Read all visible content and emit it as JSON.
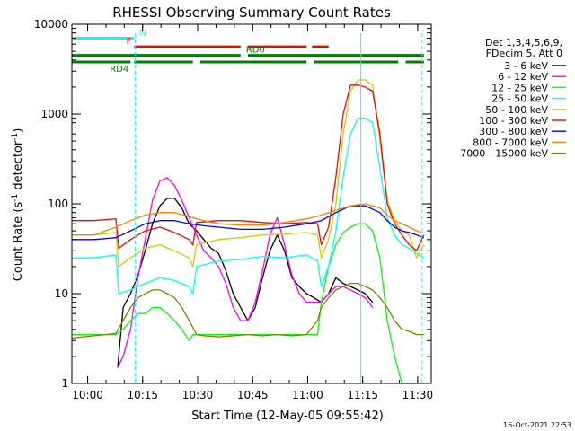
{
  "chart_data": {
    "type": "line",
    "title": "RHESSI Observing Summary Count Rates",
    "xlabel": "Start Time (12-May-05 09:55:42)",
    "ylabel_main": "Count Rate (s",
    "ylabel_sup1": "-1",
    "ylabel_mid": " detector",
    "ylabel_sup2": "-1",
    "ylabel_end": ")",
    "y_scale": "log",
    "ylim": [
      1,
      10000
    ],
    "y_ticks": [
      {
        "value": 1,
        "label": "1"
      },
      {
        "value": 10,
        "label": "10"
      },
      {
        "value": 100,
        "label": "100"
      },
      {
        "value": 1000,
        "label": "1000"
      },
      {
        "value": 10000,
        "label": "10000"
      }
    ],
    "x_unit": "minutes since 09:55:42",
    "xlim": [
      0,
      98
    ],
    "x_ticks": [
      {
        "value": 4.3,
        "label": "10:00"
      },
      {
        "value": 19.3,
        "label": "10:15"
      },
      {
        "value": 34.3,
        "label": "10:30"
      },
      {
        "value": 49.3,
        "label": "10:45"
      },
      {
        "value": 64.3,
        "label": "11:00"
      },
      {
        "value": 79.3,
        "label": "11:15"
      },
      {
        "value": 94.3,
        "label": "11:30"
      }
    ],
    "legend_header": [
      "Det 1,3,4,5,6,9,",
      "FDecim 5, Att 0"
    ],
    "legend_position": "right",
    "series": [
      {
        "name": "3 - 6 keV",
        "color": "#000000",
        "x": [
          12.5,
          14,
          16,
          18,
          20,
          22,
          24,
          26,
          28,
          30,
          32,
          34,
          36,
          38,
          40,
          42,
          44,
          46,
          48,
          50,
          52,
          54,
          56,
          58,
          60,
          62,
          64,
          66,
          68,
          70,
          72,
          74,
          76,
          78,
          80,
          82
        ],
        "y": [
          1.5,
          7,
          10,
          16,
          30,
          60,
          95,
          115,
          115,
          90,
          60,
          50,
          40,
          32,
          28,
          18,
          10,
          7,
          5,
          7,
          15,
          30,
          45,
          30,
          15,
          12,
          10,
          9,
          8,
          10,
          15,
          13,
          12,
          11,
          10,
          8
        ]
      },
      {
        "name": "6 - 12 keV",
        "color": "#ff00ff",
        "x": [
          12.5,
          14,
          16,
          18,
          20,
          22,
          24,
          26,
          28,
          30,
          32,
          34,
          36,
          38,
          40,
          42,
          44,
          46,
          48,
          50,
          52,
          54,
          56,
          58,
          60,
          62,
          64,
          66,
          68,
          70,
          72,
          74,
          76,
          78,
          80,
          82
        ],
        "y": [
          1.5,
          2,
          4,
          15,
          40,
          110,
          180,
          195,
          160,
          110,
          70,
          45,
          30,
          25,
          20,
          13,
          7,
          5,
          5,
          8,
          18,
          45,
          70,
          35,
          16,
          10,
          8,
          8,
          8,
          10,
          12,
          12,
          11,
          10,
          9,
          7
        ]
      },
      {
        "name": "12 - 25 keV",
        "color": "#00ff00",
        "x": [
          0,
          6,
          12,
          14,
          16,
          18,
          20,
          22,
          24,
          26,
          28,
          30,
          32,
          33,
          36,
          40,
          44,
          48,
          52,
          56,
          60,
          64,
          67,
          68,
          70,
          72,
          74,
          76,
          78,
          80,
          82,
          84,
          86,
          88,
          90,
          92,
          94,
          96
        ],
        "y": [
          3.5,
          3.5,
          3.5,
          4,
          5,
          6,
          6,
          7,
          7,
          6,
          5,
          4,
          3,
          3.5,
          3.5,
          3.5,
          3.5,
          3.5,
          3.5,
          3.5,
          3.5,
          3.5,
          3.5,
          8,
          20,
          35,
          48,
          55,
          60,
          60,
          50,
          25,
          5,
          2,
          1,
          1,
          1,
          1
        ]
      },
      {
        "name": "25 - 50 keV",
        "color": "#00ffff",
        "x": [
          0,
          6,
          12,
          12.8,
          16,
          20,
          24,
          28,
          32,
          33,
          34,
          40,
          46,
          52,
          58,
          64,
          67,
          68,
          70,
          72,
          74,
          76,
          78,
          80,
          82,
          84,
          86,
          88,
          90,
          92,
          94,
          96
        ],
        "y": [
          25,
          25,
          27,
          10,
          11,
          13,
          15,
          14,
          12,
          10,
          20,
          23,
          24,
          26,
          25,
          27,
          23,
          12,
          20,
          50,
          200,
          600,
          900,
          900,
          800,
          250,
          70,
          45,
          35,
          32,
          28,
          25
        ]
      },
      {
        "name": "50 - 100 keV",
        "color": "#cccc00",
        "x": [
          0,
          6,
          12,
          12.8,
          16,
          20,
          24,
          28,
          32,
          33,
          34,
          40,
          46,
          52,
          58,
          64,
          67,
          68,
          70,
          72,
          74,
          76,
          78,
          80,
          82,
          84,
          86,
          88,
          90,
          92,
          94,
          96
        ],
        "y": [
          45,
          45,
          48,
          20,
          25,
          32,
          35,
          30,
          25,
          20,
          35,
          40,
          42,
          45,
          46,
          48,
          45,
          25,
          40,
          100,
          600,
          1800,
          2400,
          2400,
          2100,
          500,
          110,
          65,
          50,
          45,
          25,
          35
        ]
      },
      {
        "name": "100 - 300 keV",
        "color": "#ff0000",
        "x": [
          0,
          6,
          12,
          12.8,
          16,
          20,
          24,
          28,
          32,
          33,
          34,
          40,
          46,
          52,
          58,
          64,
          67,
          68,
          70,
          72,
          74,
          76,
          78,
          80,
          82,
          84,
          86,
          88,
          90,
          92,
          94,
          96
        ],
        "y": [
          65,
          65,
          68,
          32,
          40,
          50,
          55,
          48,
          40,
          35,
          62,
          65,
          65,
          62,
          60,
          62,
          60,
          35,
          55,
          200,
          1000,
          2100,
          2100,
          2000,
          1800,
          600,
          100,
          60,
          45,
          35,
          30,
          45
        ]
      },
      {
        "name": "300 - 800 keV",
        "color": "#0000ff",
        "x": [
          0,
          6,
          12,
          16,
          20,
          24,
          28,
          32,
          36,
          40,
          46,
          52,
          58,
          64,
          68,
          72,
          76,
          80,
          84,
          86,
          88,
          90,
          92,
          94,
          96
        ],
        "y": [
          40,
          40,
          42,
          50,
          60,
          65,
          65,
          60,
          57,
          55,
          52,
          52,
          55,
          60,
          65,
          80,
          95,
          95,
          80,
          65,
          55,
          50,
          48,
          45,
          42
        ]
      },
      {
        "name": "800 - 7000 keV",
        "color": "#ff8000",
        "x": [
          0,
          6,
          12,
          16,
          20,
          24,
          28,
          32,
          36,
          40,
          46,
          52,
          58,
          64,
          68,
          72,
          76,
          80,
          84,
          86,
          88,
          90,
          92,
          94,
          96
        ],
        "y": [
          45,
          45,
          55,
          65,
          75,
          80,
          80,
          72,
          65,
          60,
          58,
          58,
          62,
          68,
          75,
          85,
          95,
          100,
          90,
          75,
          65,
          60,
          55,
          50,
          47
        ]
      },
      {
        "name": "7000 - 15000 keV",
        "color": "#808000",
        "x": [
          0,
          6,
          12,
          14,
          16,
          18,
          20,
          22,
          24,
          26,
          28,
          30,
          32,
          34,
          36,
          40,
          44,
          48,
          52,
          56,
          60,
          64,
          67,
          68,
          70,
          72,
          74,
          76,
          78,
          80,
          82,
          84,
          86,
          88,
          90,
          92,
          94,
          96
        ],
        "y": [
          3.2,
          3.4,
          3.6,
          5,
          7,
          9,
          10,
          11,
          11,
          10,
          9,
          7,
          5,
          3.5,
          3.4,
          3.3,
          3.4,
          3.5,
          3.4,
          3.5,
          3.4,
          3.5,
          5,
          7,
          9,
          11,
          12,
          13,
          13,
          12,
          11,
          9,
          7,
          5,
          4,
          3.8,
          3.5,
          3.5
        ]
      }
    ],
    "annotations": [
      {
        "label": "N",
        "color": "#00ffff",
        "segments": [
          [
            0,
            17
          ]
        ],
        "level": 7000
      },
      {
        "label": "F",
        "color": "#ff0000",
        "segments": [
          [
            17,
            46
          ],
          [
            48,
            64
          ],
          [
            65.5,
            70
          ]
        ],
        "level": 5600
      },
      {
        "label": "RD0",
        "color": "#008000",
        "segments": [
          [
            0,
            46
          ],
          [
            48,
            79
          ],
          [
            79,
            96
          ]
        ],
        "level": 4500
      },
      {
        "label": "RD4",
        "color": "#008000",
        "segments": [
          [
            0,
            16
          ],
          [
            17,
            33
          ],
          [
            35,
            64
          ],
          [
            66,
            89
          ],
          [
            91,
            96
          ]
        ],
        "level": 3800
      }
    ],
    "vlines": [
      {
        "x": 17.3,
        "color": "#00ffff",
        "style": "dashed"
      },
      {
        "x": 78.8,
        "color": "#00ffff",
        "style": "solid"
      },
      {
        "x": 95.5,
        "color": "#00ffff",
        "style": "dashed"
      }
    ],
    "timestamp": "16-Oct-2021 22:53"
  }
}
